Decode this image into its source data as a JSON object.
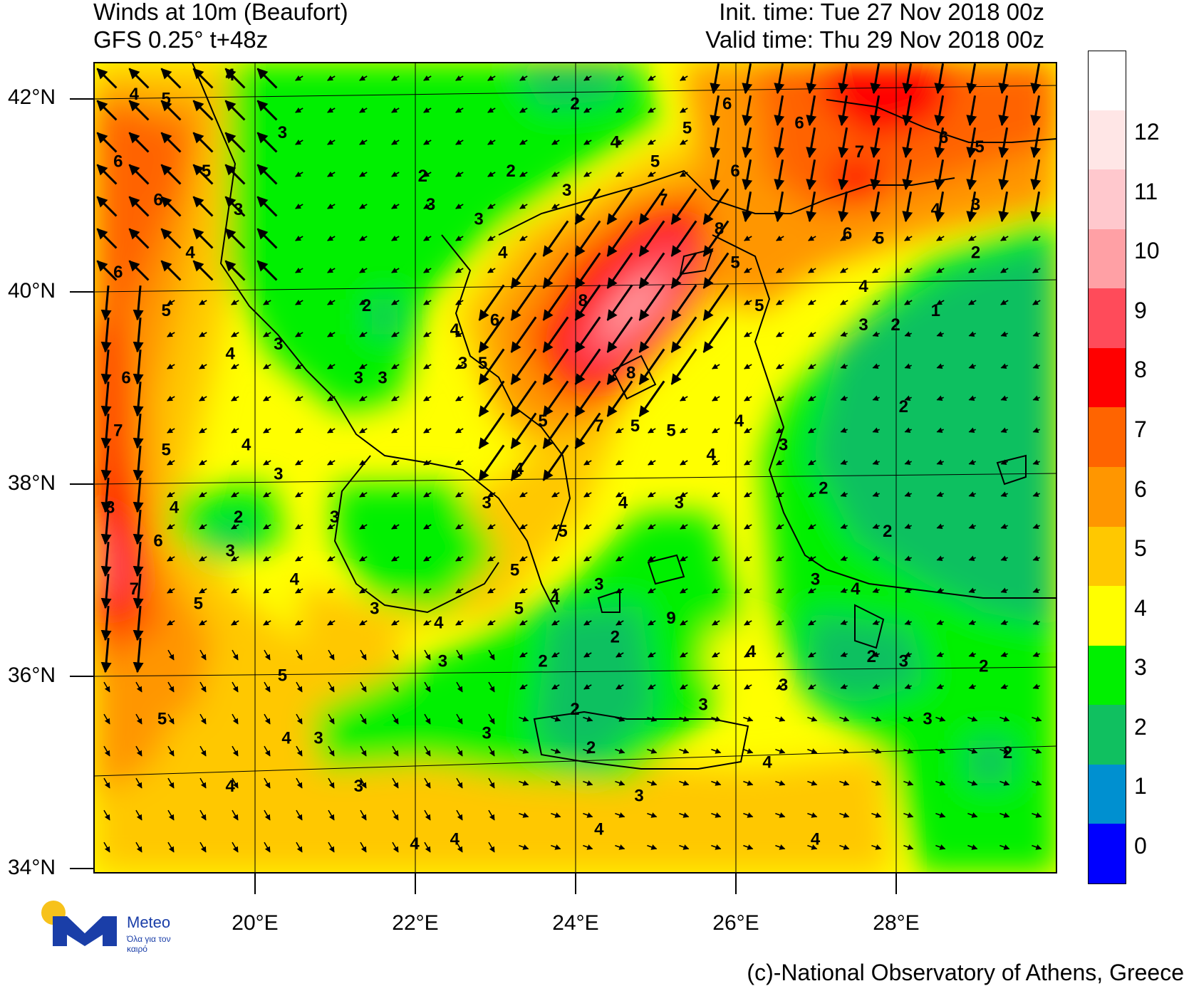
{
  "title": {
    "left_line1": "Winds at 10m (Beaufort)",
    "left_line2": "GFS 0.25° t+48z",
    "right_line1": "Init. time: Tue 27 Nov 2018 00z",
    "right_line2": "Valid time: Thu 29 Nov 2018 00z"
  },
  "axes": {
    "lat_labels": [
      "42°N",
      "40°N",
      "38°N",
      "36°N",
      "34°N"
    ],
    "lon_labels": [
      "20°E",
      "22°E",
      "24°E",
      "26°E",
      "28°E"
    ]
  },
  "colorbar": {
    "labels": [
      "0",
      "1",
      "2",
      "3",
      "4",
      "5",
      "6",
      "7",
      "8",
      "9",
      "10",
      "11",
      "12"
    ],
    "colors": {
      "0": "#0000ff",
      "1": "#0090d0",
      "2": "#10c060",
      "3": "#00f000",
      "4": "#ffff00",
      "5": "#ffc800",
      "6": "#ff9600",
      "7": "#ff6400",
      "8": "#ff0000",
      "9": "#ff4b5a",
      "10": "#ffa0a5",
      "11": "#ffc8cd",
      "12": "#ffe6e6",
      "13": "#ffffff"
    }
  },
  "logo": {
    "name": "Meteo",
    "slogan": "Όλα για τον καιρό"
  },
  "credit": "(c)-National Observatory of Athens, Greece",
  "map_labels": [
    {
      "text": "4",
      "lon": 18.5,
      "lat": 42.0
    },
    {
      "text": "5",
      "lon": 18.9,
      "lat": 41.95
    },
    {
      "text": "4",
      "lon": 19.7,
      "lat": 42.2
    },
    {
      "text": "6",
      "lon": 18.3,
      "lat": 41.3
    },
    {
      "text": "5",
      "lon": 19.4,
      "lat": 41.2
    },
    {
      "text": "6",
      "lon": 18.8,
      "lat": 40.9
    },
    {
      "text": "3",
      "lon": 20.35,
      "lat": 41.6
    },
    {
      "text": "3",
      "lon": 19.8,
      "lat": 40.8
    },
    {
      "text": "4",
      "lon": 19.2,
      "lat": 40.35
    },
    {
      "text": "6",
      "lon": 18.3,
      "lat": 40.15
    },
    {
      "text": "5",
      "lon": 18.9,
      "lat": 39.75
    },
    {
      "text": "4",
      "lon": 19.7,
      "lat": 39.3
    },
    {
      "text": "3",
      "lon": 20.3,
      "lat": 39.4
    },
    {
      "text": "2",
      "lon": 21.4,
      "lat": 39.8
    },
    {
      "text": "3",
      "lon": 21.3,
      "lat": 39.05
    },
    {
      "text": "3",
      "lon": 21.6,
      "lat": 39.05
    },
    {
      "text": "6",
      "lon": 18.4,
      "lat": 39.05
    },
    {
      "text": "7",
      "lon": 18.3,
      "lat": 38.5
    },
    {
      "text": "5",
      "lon": 18.9,
      "lat": 38.3
    },
    {
      "text": "4",
      "lon": 19.9,
      "lat": 38.35
    },
    {
      "text": "3",
      "lon": 20.3,
      "lat": 38.05
    },
    {
      "text": "8",
      "lon": 18.2,
      "lat": 37.7
    },
    {
      "text": "4",
      "lon": 19.0,
      "lat": 37.7
    },
    {
      "text": "2",
      "lon": 19.8,
      "lat": 37.6
    },
    {
      "text": "6",
      "lon": 18.8,
      "lat": 37.35
    },
    {
      "text": "3",
      "lon": 19.7,
      "lat": 37.25
    },
    {
      "text": "7",
      "lon": 18.5,
      "lat": 36.85
    },
    {
      "text": "5",
      "lon": 19.3,
      "lat": 36.7
    },
    {
      "text": "4",
      "lon": 20.5,
      "lat": 36.95
    },
    {
      "text": "3",
      "lon": 21.5,
      "lat": 36.65
    },
    {
      "text": "3",
      "lon": 21.0,
      "lat": 37.6
    },
    {
      "text": "4",
      "lon": 22.3,
      "lat": 36.5
    },
    {
      "text": "5",
      "lon": 20.35,
      "lat": 35.95
    },
    {
      "text": "5",
      "lon": 18.85,
      "lat": 35.5
    },
    {
      "text": "4",
      "lon": 20.4,
      "lat": 35.3
    },
    {
      "text": "3",
      "lon": 20.8,
      "lat": 35.3
    },
    {
      "text": "4",
      "lon": 19.7,
      "lat": 34.8
    },
    {
      "text": "3",
      "lon": 21.3,
      "lat": 34.8
    },
    {
      "text": "4",
      "lon": 22.0,
      "lat": 34.2
    },
    {
      "text": "4",
      "lon": 22.5,
      "lat": 34.25
    },
    {
      "text": "3",
      "lon": 22.35,
      "lat": 36.1
    },
    {
      "text": "3",
      "lon": 22.9,
      "lat": 35.35
    },
    {
      "text": "2",
      "lon": 22.1,
      "lat": 41.15
    },
    {
      "text": "2",
      "lon": 23.2,
      "lat": 41.2
    },
    {
      "text": "2",
      "lon": 24.0,
      "lat": 41.9
    },
    {
      "text": "3",
      "lon": 22.2,
      "lat": 40.85
    },
    {
      "text": "3",
      "lon": 22.8,
      "lat": 40.7
    },
    {
      "text": "4",
      "lon": 23.1,
      "lat": 40.35
    },
    {
      "text": "3",
      "lon": 23.9,
      "lat": 41.0
    },
    {
      "text": "4",
      "lon": 24.5,
      "lat": 41.5
    },
    {
      "text": "5",
      "lon": 25.0,
      "lat": 41.3
    },
    {
      "text": "5",
      "lon": 25.4,
      "lat": 41.65
    },
    {
      "text": "6",
      "lon": 25.9,
      "lat": 41.9
    },
    {
      "text": "6",
      "lon": 26.0,
      "lat": 41.2
    },
    {
      "text": "6",
      "lon": 26.8,
      "lat": 41.7
    },
    {
      "text": "7",
      "lon": 25.1,
      "lat": 40.9
    },
    {
      "text": "8",
      "lon": 25.8,
      "lat": 40.6
    },
    {
      "text": "8",
      "lon": 24.1,
      "lat": 39.85
    },
    {
      "text": "6",
      "lon": 23.0,
      "lat": 39.65
    },
    {
      "text": "4",
      "lon": 22.5,
      "lat": 39.55
    },
    {
      "text": "3",
      "lon": 22.6,
      "lat": 39.2
    },
    {
      "text": "5",
      "lon": 22.85,
      "lat": 39.2
    },
    {
      "text": "8",
      "lon": 24.7,
      "lat": 39.1
    },
    {
      "text": "7",
      "lon": 24.3,
      "lat": 38.55
    },
    {
      "text": "5",
      "lon": 24.75,
      "lat": 38.55
    },
    {
      "text": "5",
      "lon": 25.2,
      "lat": 38.5
    },
    {
      "text": "5",
      "lon": 23.6,
      "lat": 38.6
    },
    {
      "text": "4",
      "lon": 23.3,
      "lat": 38.1
    },
    {
      "text": "3",
      "lon": 22.9,
      "lat": 37.75
    },
    {
      "text": "4",
      "lon": 24.6,
      "lat": 37.75
    },
    {
      "text": "5",
      "lon": 23.85,
      "lat": 37.45
    },
    {
      "text": "3",
      "lon": 25.3,
      "lat": 37.75
    },
    {
      "text": "5",
      "lon": 23.25,
      "lat": 37.05
    },
    {
      "text": "5",
      "lon": 23.3,
      "lat": 36.65
    },
    {
      "text": "4",
      "lon": 23.75,
      "lat": 36.75
    },
    {
      "text": "3",
      "lon": 24.3,
      "lat": 36.9
    },
    {
      "text": "2",
      "lon": 24.5,
      "lat": 36.35
    },
    {
      "text": "9",
      "lon": 25.2,
      "lat": 36.55
    },
    {
      "text": "2",
      "lon": 23.6,
      "lat": 36.1
    },
    {
      "text": "4",
      "lon": 26.2,
      "lat": 36.2
    },
    {
      "text": "2",
      "lon": 24.0,
      "lat": 35.6
    },
    {
      "text": "3",
      "lon": 26.6,
      "lat": 35.85
    },
    {
      "text": "3",
      "lon": 25.6,
      "lat": 35.65
    },
    {
      "text": "2",
      "lon": 24.2,
      "lat": 35.2
    },
    {
      "text": "4",
      "lon": 26.4,
      "lat": 35.05
    },
    {
      "text": "3",
      "lon": 24.8,
      "lat": 34.7
    },
    {
      "text": "4",
      "lon": 24.3,
      "lat": 34.35
    },
    {
      "text": "4",
      "lon": 27.0,
      "lat": 34.25
    },
    {
      "text": "5",
      "lon": 26.0,
      "lat": 40.25
    },
    {
      "text": "6",
      "lon": 27.4,
      "lat": 40.55
    },
    {
      "text": "5",
      "lon": 27.8,
      "lat": 40.5
    },
    {
      "text": "7",
      "lon": 27.55,
      "lat": 41.4
    },
    {
      "text": "6",
      "lon": 28.6,
      "lat": 41.55
    },
    {
      "text": "5",
      "lon": 29.05,
      "lat": 41.45
    },
    {
      "text": "4",
      "lon": 28.5,
      "lat": 40.8
    },
    {
      "text": "3",
      "lon": 29.0,
      "lat": 40.85
    },
    {
      "text": "2",
      "lon": 29.0,
      "lat": 40.35
    },
    {
      "text": "4",
      "lon": 27.6,
      "lat": 40.0
    },
    {
      "text": "1",
      "lon": 28.5,
      "lat": 39.75
    },
    {
      "text": "3",
      "lon": 27.6,
      "lat": 39.6
    },
    {
      "text": "2",
      "lon": 28.0,
      "lat": 39.6
    },
    {
      "text": "5",
      "lon": 26.3,
      "lat": 39.8
    },
    {
      "text": "2",
      "lon": 28.1,
      "lat": 38.75
    },
    {
      "text": "4",
      "lon": 26.05,
      "lat": 38.6
    },
    {
      "text": "4",
      "lon": 25.7,
      "lat": 38.25
    },
    {
      "text": "3",
      "lon": 26.6,
      "lat": 38.35
    },
    {
      "text": "2",
      "lon": 27.1,
      "lat": 37.9
    },
    {
      "text": "2",
      "lon": 27.9,
      "lat": 37.45
    },
    {
      "text": "3",
      "lon": 27.0,
      "lat": 36.95
    },
    {
      "text": "4",
      "lon": 27.5,
      "lat": 36.85
    },
    {
      "text": "2",
      "lon": 27.7,
      "lat": 36.15
    },
    {
      "text": "3",
      "lon": 28.1,
      "lat": 36.1
    },
    {
      "text": "2",
      "lon": 29.1,
      "lat": 36.05
    },
    {
      "text": "3",
      "lon": 28.4,
      "lat": 35.5
    },
    {
      "text": "2",
      "lon": 29.4,
      "lat": 35.15
    }
  ]
}
